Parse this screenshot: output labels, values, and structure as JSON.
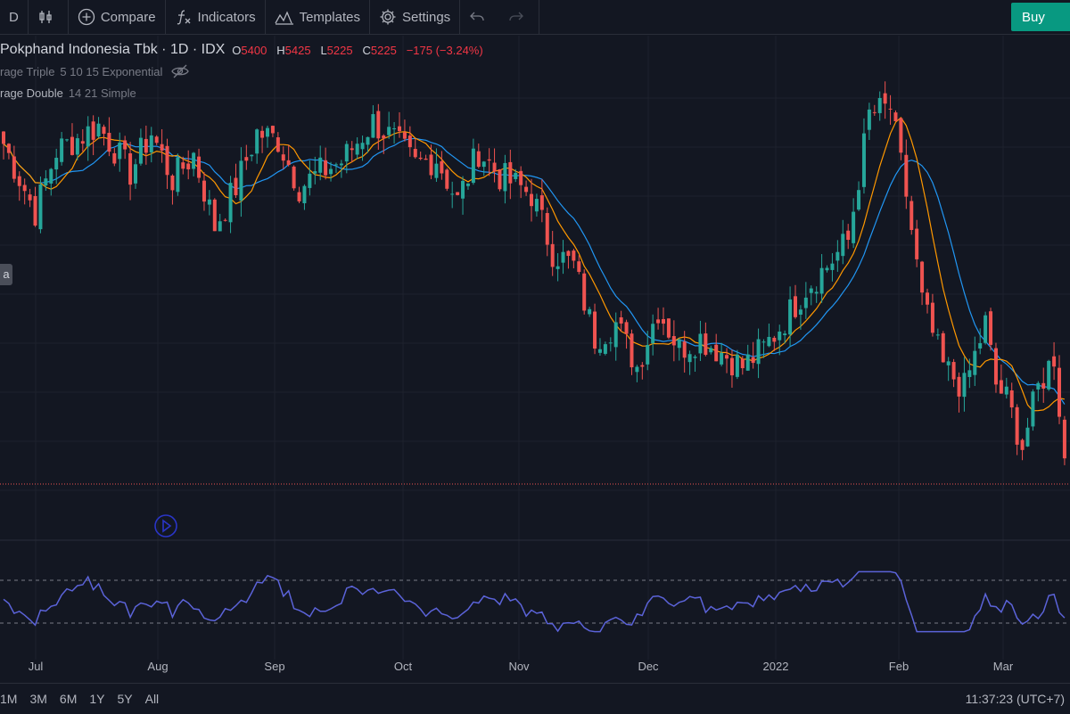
{
  "toolbar": {
    "interval": "D",
    "compare": "Compare",
    "indicators": "Indicators",
    "templates": "Templates",
    "settings": "Settings",
    "buy": "Buy"
  },
  "legend": {
    "symbol": "Pokphand Indonesia Tbk · 1D · IDX",
    "o_label": "O",
    "o_value": "5400",
    "h_label": "H",
    "h_value": "5425",
    "l_label": "L",
    "l_value": "5225",
    "c_label": "C",
    "c_value": "5225",
    "change": "−175 (−3.24%)",
    "indicator1_name": "rage Triple",
    "indicator1_params": "5 10 15 Exponential",
    "indicator2_name": "rage Double",
    "indicator2_params": "14 21 Simple",
    "side_label": "a"
  },
  "bottom": {
    "ranges": [
      "1M",
      "3M",
      "6M",
      "1Y",
      "5Y",
      "All"
    ],
    "clock": "11:37:23 (UTC+7)"
  },
  "colors": {
    "up": "#26a69a",
    "down": "#ef5350",
    "ma_fast": "#2196f3",
    "ma_slow": "#ff9800",
    "oscillator": "#5b63d9",
    "background": "#131722",
    "buy": "#089981"
  },
  "chart_data": [
    {
      "type": "candlestick",
      "x_ticks": [
        "Jul",
        "Aug",
        "Sep",
        "Oct",
        "Nov",
        "Dec",
        "2022",
        "Feb",
        "Mar"
      ],
      "y_range_approx": [
        5000,
        6400
      ],
      "grid": true,
      "series": [
        {
          "name": "Close",
          "anchors": [
            [
              0,
              6100
            ],
            [
              6,
              5910
            ],
            [
              10,
              6080
            ],
            [
              18,
              6150
            ],
            [
              24,
              6020
            ],
            [
              28,
              6130
            ],
            [
              32,
              6000
            ],
            [
              36,
              6070
            ],
            [
              40,
              5870
            ],
            [
              44,
              5980
            ],
            [
              48,
              6130
            ],
            [
              52,
              6110
            ],
            [
              56,
              5980
            ],
            [
              60,
              6020
            ],
            [
              64,
              6050
            ],
            [
              70,
              6160
            ],
            [
              74,
              6110
            ],
            [
              78,
              6040
            ],
            [
              82,
              6060
            ],
            [
              86,
              5940
            ],
            [
              90,
              6080
            ],
            [
              94,
              6010
            ],
            [
              100,
              5960
            ],
            [
              104,
              5800
            ],
            [
              108,
              5760
            ],
            [
              112,
              5560
            ],
            [
              116,
              5600
            ],
            [
              120,
              5480
            ],
            [
              124,
              5640
            ],
            [
              128,
              5530
            ],
            [
              132,
              5560
            ],
            [
              136,
              5520
            ],
            [
              140,
              5480
            ],
            [
              144,
              5530
            ],
            [
              148,
              5610
            ],
            [
              152,
              5700
            ],
            [
              156,
              5760
            ],
            [
              160,
              5830
            ],
            [
              164,
              6180
            ],
            [
              168,
              6200
            ],
            [
              171,
              5960
            ],
            [
              174,
              5660
            ],
            [
              178,
              5480
            ],
            [
              182,
              5420
            ],
            [
              186,
              5600
            ],
            [
              188,
              5430
            ],
            [
              190,
              5390
            ],
            [
              193,
              5260
            ],
            [
              196,
              5420
            ],
            [
              199,
              5510
            ],
            [
              201,
              5225
            ]
          ]
        },
        {
          "name": "MA",
          "params": "14 21 Simple"
        },
        {
          "name": "MA",
          "params": "5 10 15 Exponential"
        }
      ]
    },
    {
      "type": "line",
      "x_ticks": [
        "Jul",
        "Aug",
        "Sep",
        "Oct",
        "Nov",
        "Dec",
        "2022",
        "Feb",
        "Mar"
      ],
      "bands": [
        30,
        70
      ],
      "series": [
        {
          "name": "Oscillator"
        }
      ]
    }
  ]
}
